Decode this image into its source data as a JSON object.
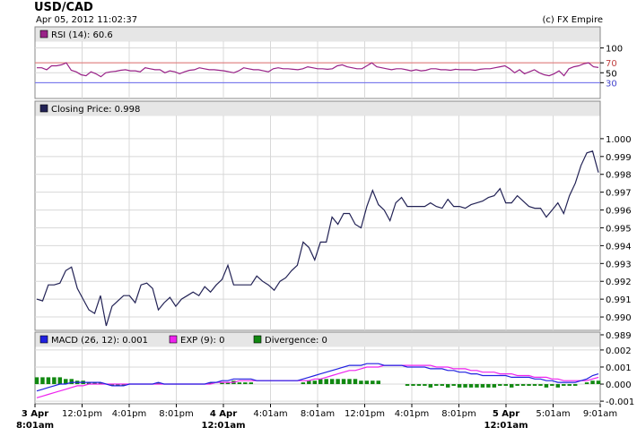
{
  "header": {
    "title": "USD/CAD",
    "datetime": "Apr 05, 2012 11:02:37",
    "copyright": "(c) FX Empire"
  },
  "colors": {
    "panel_header_bg": "#e6e6e6",
    "grid": "#d8d8d8",
    "price_line": "#222255",
    "rsi_line": "#992288",
    "rsi_70_line": "#e07070",
    "rsi_30_line": "#6a6af0",
    "macd_line": "#2020e0",
    "exp_line": "#ee22ee",
    "divergence": "#118811"
  },
  "chart_data": [
    {
      "type": "line",
      "name": "rsi_panel",
      "legend": "RSI (14): 60.6",
      "ylim": [
        0,
        110
      ],
      "y_ticks": [
        100,
        70,
        50,
        30
      ],
      "reference_lines": [
        70,
        30
      ],
      "values": [
        60,
        60,
        56,
        64,
        64,
        66,
        70,
        55,
        52,
        46,
        44,
        52,
        48,
        42,
        50,
        52,
        53,
        55,
        56,
        54,
        54,
        52,
        60,
        58,
        56,
        56,
        50,
        54,
        52,
        48,
        52,
        55,
        56,
        60,
        58,
        56,
        56,
        55,
        54,
        52,
        50,
        54,
        60,
        58,
        56,
        56,
        54,
        52,
        58,
        60,
        58,
        58,
        57,
        56,
        58,
        62,
        60,
        58,
        58,
        57,
        58,
        64,
        66,
        62,
        60,
        58,
        58,
        64,
        70,
        62,
        60,
        58,
        56,
        58,
        58,
        56,
        54,
        56,
        54,
        55,
        58,
        58,
        56,
        56,
        55,
        57,
        56,
        56,
        56,
        55,
        57,
        58,
        58,
        60,
        62,
        64,
        58,
        50,
        56,
        48,
        52,
        56,
        50,
        46,
        44,
        48,
        54,
        44,
        58,
        62,
        64,
        68,
        70,
        62,
        60.6
      ]
    },
    {
      "type": "line",
      "name": "closing_price_panel",
      "legend": "Closing Price: 0.998",
      "ylim": [
        0.9893,
        1.0012
      ],
      "y_ticks": [
        1.0,
        0.999,
        0.998,
        0.997,
        0.996,
        0.995,
        0.994,
        0.993,
        0.992,
        0.991,
        0.99,
        0.989
      ],
      "x_ticks": [
        "3 Apr\n8:01am",
        "12:01pm",
        "4:01pm",
        "8:01pm",
        "4 Apr\n12:01am",
        "4:01am",
        "8:01am",
        "12:01pm",
        "4:01pm",
        "8:01pm",
        "5 Apr\n12:01am",
        "5:01am",
        "9:01am"
      ],
      "values": [
        0.991,
        0.9909,
        0.9918,
        0.9918,
        0.9919,
        0.9926,
        0.9928,
        0.9916,
        0.991,
        0.9904,
        0.9902,
        0.9912,
        0.9895,
        0.9906,
        0.9909,
        0.9912,
        0.9912,
        0.9908,
        0.9918,
        0.9919,
        0.9916,
        0.9904,
        0.9908,
        0.9911,
        0.9906,
        0.991,
        0.9912,
        0.9914,
        0.9912,
        0.9917,
        0.9914,
        0.9918,
        0.9921,
        0.9929,
        0.9918,
        0.9918,
        0.9918,
        0.9918,
        0.9923,
        0.992,
        0.9918,
        0.9915,
        0.992,
        0.9922,
        0.9926,
        0.9929,
        0.9942,
        0.9939,
        0.9932,
        0.9942,
        0.9942,
        0.9956,
        0.9952,
        0.9958,
        0.9958,
        0.9952,
        0.995,
        0.9962,
        0.9971,
        0.9963,
        0.996,
        0.9954,
        0.9964,
        0.9967,
        0.9962,
        0.9962,
        0.9962,
        0.9962,
        0.9964,
        0.9962,
        0.9961,
        0.9966,
        0.9962,
        0.9962,
        0.9961,
        0.9963,
        0.9964,
        0.9965,
        0.9967,
        0.9968,
        0.9972,
        0.9964,
        0.9964,
        0.9968,
        0.9965,
        0.9962,
        0.9961,
        0.9961,
        0.9956,
        0.996,
        0.9964,
        0.9958,
        0.9968,
        0.9975,
        0.9985,
        0.9992,
        0.9993,
        0.9981
      ]
    },
    {
      "type": "line",
      "name": "macd_panel",
      "legend": {
        "macd": "MACD (26, 12): 0.001",
        "exp": "EXP (9): 0",
        "divergence": "Divergence: 0"
      },
      "ylim": [
        -0.0011,
        0.0021
      ],
      "y_ticks": [
        0.002,
        0.001,
        0.0,
        -0.001
      ],
      "y_tick_labels": [
        "0.002",
        "0.001",
        "0.000",
        "-0.001"
      ],
      "series": [
        {
          "name": "MACD (26, 12)",
          "values": [
            -0.0004,
            -0.0003,
            -0.0002,
            -0.0001,
            0.0,
            0.0,
            0.0001,
            0.0001,
            0.0001,
            0.0001,
            0.0001,
            0.0001,
            0.0,
            -0.0001,
            -0.0001,
            -0.0001,
            0.0,
            0.0,
            0.0,
            0.0,
            0.0,
            0.0001,
            0.0,
            0.0,
            0.0,
            0.0,
            0.0,
            0.0,
            0.0,
            0.0,
            0.0001,
            0.0001,
            0.0002,
            0.0002,
            0.0003,
            0.0003,
            0.0003,
            0.0003,
            0.0002,
            0.0002,
            0.0002,
            0.0002,
            0.0002,
            0.0002,
            0.0002,
            0.0002,
            0.0003,
            0.0004,
            0.0005,
            0.0006,
            0.0007,
            0.0008,
            0.0009,
            0.001,
            0.0011,
            0.0011,
            0.0011,
            0.0012,
            0.0012,
            0.0012,
            0.0011,
            0.0011,
            0.0011,
            0.0011,
            0.001,
            0.001,
            0.001,
            0.001,
            0.0009,
            0.0009,
            0.0009,
            0.0008,
            0.0008,
            0.0007,
            0.0007,
            0.0006,
            0.0006,
            0.0005,
            0.0005,
            0.0005,
            0.0005,
            0.0005,
            0.0004,
            0.0004,
            0.0004,
            0.0004,
            0.0003,
            0.0003,
            0.0002,
            0.0002,
            0.0001,
            0.0001,
            0.0001,
            0.0001,
            0.0002,
            0.0003,
            0.0005,
            0.0006
          ]
        },
        {
          "name": "EXP (9)",
          "values": [
            -0.0008,
            -0.0007,
            -0.0006,
            -0.0005,
            -0.0004,
            -0.0003,
            -0.0002,
            -0.0001,
            -0.0001,
            0.0,
            0.0,
            0.0,
            0.0,
            0.0,
            0.0,
            0.0,
            0.0,
            0.0,
            0.0,
            0.0,
            0.0,
            0.0,
            0.0,
            0.0,
            0.0,
            0.0,
            0.0,
            0.0,
            0.0,
            0.0,
            0.0,
            0.0001,
            0.0001,
            0.0001,
            0.0001,
            0.0002,
            0.0002,
            0.0002,
            0.0002,
            0.0002,
            0.0002,
            0.0002,
            0.0002,
            0.0002,
            0.0002,
            0.0002,
            0.0002,
            0.0002,
            0.0003,
            0.0003,
            0.0004,
            0.0005,
            0.0006,
            0.0007,
            0.0008,
            0.0008,
            0.0009,
            0.001,
            0.001,
            0.001,
            0.0011,
            0.0011,
            0.0011,
            0.0011,
            0.0011,
            0.0011,
            0.0011,
            0.0011,
            0.0011,
            0.001,
            0.001,
            0.001,
            0.0009,
            0.0009,
            0.0009,
            0.0008,
            0.0008,
            0.0007,
            0.0007,
            0.0007,
            0.0006,
            0.0006,
            0.0006,
            0.0005,
            0.0005,
            0.0005,
            0.0004,
            0.0004,
            0.0004,
            0.0003,
            0.0003,
            0.0002,
            0.0002,
            0.0002,
            0.0002,
            0.0002,
            0.0003,
            0.0004
          ]
        },
        {
          "name": "Divergence",
          "values": [
            0.0004,
            0.0004,
            0.0004,
            0.0004,
            0.0004,
            0.0003,
            0.0003,
            0.0002,
            0.0002,
            0.0001,
            0.0001,
            0.0001,
            0.0,
            -0.0001,
            -0.0001,
            -0.0001,
            0.0,
            0.0,
            0.0,
            0.0,
            0.0,
            0.0001,
            0.0,
            0.0,
            0.0,
            0.0,
            0.0,
            0.0,
            0.0,
            0.0,
            0.0001,
            0.0,
            0.0001,
            0.0001,
            0.0002,
            0.0001,
            0.0001,
            0.0001,
            0.0,
            0.0,
            0.0,
            0.0,
            0.0,
            0.0,
            0.0,
            0.0,
            0.0001,
            0.0002,
            0.0002,
            0.0003,
            0.0003,
            0.0003,
            0.0003,
            0.0003,
            0.0003,
            0.0003,
            0.0002,
            0.0002,
            0.0002,
            0.0002,
            0.0,
            0.0,
            0.0,
            0.0,
            -0.0001,
            -0.0001,
            -0.0001,
            -0.0001,
            -0.0002,
            -0.0001,
            -0.0001,
            -0.0002,
            -0.0001,
            -0.0002,
            -0.0002,
            -0.0002,
            -0.0002,
            -0.0002,
            -0.0002,
            -0.0002,
            -0.0001,
            -0.0001,
            -0.0002,
            -0.0001,
            -0.0001,
            -0.0001,
            -0.0001,
            -0.0001,
            -0.0002,
            -0.0001,
            -0.0002,
            -0.0001,
            -0.0001,
            -0.0001,
            0.0,
            0.0001,
            0.0002,
            0.0002
          ]
        }
      ]
    }
  ]
}
